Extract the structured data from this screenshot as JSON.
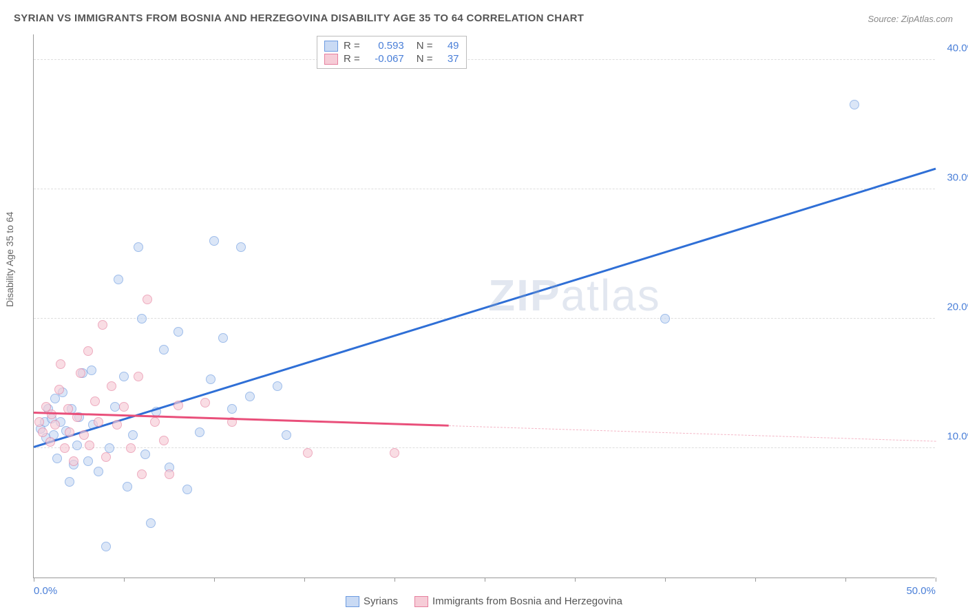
{
  "title": "SYRIAN VS IMMIGRANTS FROM BOSNIA AND HERZEGOVINA DISABILITY AGE 35 TO 64 CORRELATION CHART",
  "source": "Source: ZipAtlas.com",
  "yaxis_title": "Disability Age 35 to 64",
  "watermark": "ZIPatlas",
  "chart": {
    "type": "scatter-with-trend",
    "xlim": [
      0,
      50
    ],
    "ylim": [
      0,
      42
    ],
    "xticks": [
      0,
      5,
      10,
      15,
      20,
      25,
      30,
      35,
      40,
      45,
      50
    ],
    "xtick_labels": {
      "0": "0.0%",
      "50": "50.0%"
    },
    "yticks": [
      10,
      20,
      30,
      40
    ],
    "ytick_labels": {
      "10": "10.0%",
      "20": "20.0%",
      "30": "30.0%",
      "40": "40.0%"
    },
    "hgrid": [
      10,
      20,
      30,
      40
    ],
    "background_color": "#ffffff",
    "grid_color": "#dddddd",
    "axis_color": "#999999"
  },
  "series": [
    {
      "name": "Syrians",
      "color_fill": "#c9daf4",
      "color_stroke": "#6b9ae0",
      "marker_radius": 7,
      "fill_opacity": 0.65,
      "r": "0.593",
      "n": "49",
      "trend": {
        "x1": 0,
        "y1": 10,
        "x2": 50,
        "y2": 31.5,
        "color": "#2f6fd6",
        "width": 2.5,
        "dash": false
      },
      "points": [
        [
          0.4,
          11.5
        ],
        [
          0.6,
          12.0
        ],
        [
          0.7,
          10.8
        ],
        [
          0.8,
          13.0
        ],
        [
          1.0,
          12.3
        ],
        [
          1.1,
          11.0
        ],
        [
          1.2,
          13.8
        ],
        [
          1.3,
          9.2
        ],
        [
          1.5,
          12.0
        ],
        [
          1.6,
          14.3
        ],
        [
          1.8,
          11.3
        ],
        [
          2.0,
          7.4
        ],
        [
          2.1,
          13.0
        ],
        [
          2.2,
          8.7
        ],
        [
          2.4,
          10.2
        ],
        [
          2.5,
          12.4
        ],
        [
          2.7,
          15.8
        ],
        [
          3.0,
          9.0
        ],
        [
          3.2,
          16.0
        ],
        [
          3.3,
          11.8
        ],
        [
          3.6,
          8.2
        ],
        [
          4.0,
          2.4
        ],
        [
          4.2,
          10.0
        ],
        [
          4.5,
          13.2
        ],
        [
          4.7,
          23.0
        ],
        [
          5.0,
          15.5
        ],
        [
          5.2,
          7.0
        ],
        [
          5.5,
          11.0
        ],
        [
          5.8,
          25.5
        ],
        [
          6.0,
          20.0
        ],
        [
          6.2,
          9.5
        ],
        [
          6.5,
          4.2
        ],
        [
          6.8,
          12.8
        ],
        [
          7.2,
          17.6
        ],
        [
          7.5,
          8.5
        ],
        [
          8.0,
          19.0
        ],
        [
          8.5,
          6.8
        ],
        [
          9.2,
          11.2
        ],
        [
          9.8,
          15.3
        ],
        [
          10.0,
          26.0
        ],
        [
          10.5,
          18.5
        ],
        [
          11.0,
          13.0
        ],
        [
          11.5,
          25.5
        ],
        [
          12.0,
          14.0
        ],
        [
          13.5,
          14.8
        ],
        [
          14.0,
          11.0
        ],
        [
          35.0,
          20.0
        ],
        [
          45.5,
          36.5
        ]
      ]
    },
    {
      "name": "Immigrants from Bosnia and Herzegovina",
      "color_fill": "#f6ccd7",
      "color_stroke": "#e67f9e",
      "marker_radius": 7,
      "fill_opacity": 0.65,
      "r": "-0.067",
      "n": "37",
      "trend": {
        "x1": 0,
        "y1": 12.7,
        "x2": 23,
        "y2": 11.7,
        "color": "#e94f7a",
        "width": 2.5,
        "dash": false
      },
      "trend_ext": {
        "x1": 23,
        "y1": 11.7,
        "x2": 50,
        "y2": 10.5,
        "color": "#f4b6c6",
        "width": 1.5,
        "dash": true
      },
      "points": [
        [
          0.3,
          12.0
        ],
        [
          0.5,
          11.2
        ],
        [
          0.7,
          13.2
        ],
        [
          0.9,
          10.5
        ],
        [
          1.0,
          12.6
        ],
        [
          1.2,
          11.8
        ],
        [
          1.4,
          14.5
        ],
        [
          1.5,
          16.5
        ],
        [
          1.7,
          10.0
        ],
        [
          1.9,
          13.0
        ],
        [
          2.0,
          11.2
        ],
        [
          2.2,
          9.0
        ],
        [
          2.4,
          12.4
        ],
        [
          2.6,
          15.8
        ],
        [
          2.8,
          11.0
        ],
        [
          3.0,
          17.5
        ],
        [
          3.1,
          10.2
        ],
        [
          3.4,
          13.6
        ],
        [
          3.6,
          12.0
        ],
        [
          3.8,
          19.5
        ],
        [
          4.0,
          9.3
        ],
        [
          4.3,
          14.8
        ],
        [
          4.6,
          11.8
        ],
        [
          5.0,
          13.2
        ],
        [
          5.4,
          10.0
        ],
        [
          5.8,
          15.5
        ],
        [
          6.0,
          8.0
        ],
        [
          6.3,
          21.5
        ],
        [
          6.7,
          12.0
        ],
        [
          7.2,
          10.6
        ],
        [
          7.5,
          8.0
        ],
        [
          8.0,
          13.3
        ],
        [
          9.5,
          13.5
        ],
        [
          11.0,
          12.0
        ],
        [
          15.2,
          9.6
        ],
        [
          20.0,
          9.6
        ]
      ]
    }
  ],
  "legend_top": {
    "r_label": "R =",
    "n_label": "N ="
  },
  "legend_bottom_items": [
    {
      "label": "Syrians",
      "fill": "#c9daf4",
      "stroke": "#6b9ae0"
    },
    {
      "label": "Immigrants from Bosnia and Herzegovina",
      "fill": "#f6ccd7",
      "stroke": "#e67f9e"
    }
  ]
}
